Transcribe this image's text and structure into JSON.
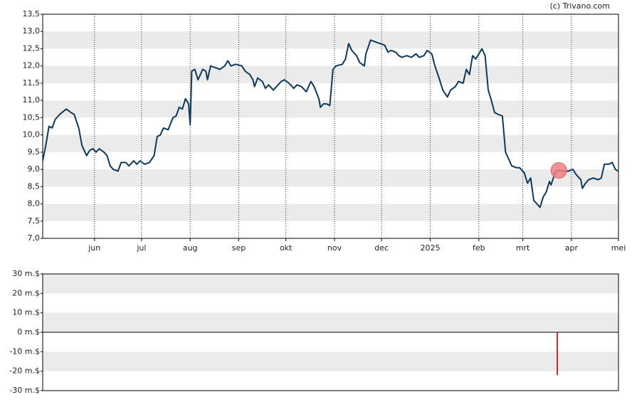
{
  "credit": "(c) Trivano.com",
  "chart_data": [
    {
      "type": "line",
      "x": [
        -2,
        0,
        2,
        4,
        6,
        9,
        13,
        16,
        18,
        21,
        23,
        26,
        28,
        30,
        32,
        34,
        37,
        39,
        41,
        43,
        46,
        48,
        51,
        53,
        56,
        58,
        60,
        63,
        66,
        69,
        71,
        73,
        75,
        78,
        81,
        83,
        85,
        87,
        89,
        91,
        92,
        93,
        95,
        97,
        100,
        102,
        103,
        105,
        108,
        111,
        114,
        116,
        118,
        121,
        125,
        127,
        130,
        132,
        133,
        135,
        138,
        140,
        142,
        145,
        147,
        150,
        152,
        155,
        158,
        160,
        163,
        166,
        169,
        171,
        174,
        175,
        177,
        179,
        181,
        183,
        185,
        189,
        191,
        193,
        195,
        198,
        200,
        203,
        204,
        207,
        210,
        213,
        216,
        218,
        220,
        223,
        225,
        227,
        230,
        233,
        236,
        238,
        241,
        243,
        246,
        248,
        251,
        253,
        256,
        258,
        261,
        263,
        266,
        268,
        270,
        272,
        274,
        276,
        278,
        280,
        282,
        284,
        286,
        288,
        291,
        293,
        295,
        297,
        300,
        302,
        305,
        307,
        309,
        311,
        313,
        315,
        317,
        319,
        321,
        322,
        325,
        327,
        330,
        333,
        336,
        338,
        341,
        342,
        344,
        346,
        349,
        352,
        354,
        356,
        359,
        361,
        363,
        365
      ],
      "values": [
        9.25,
        9.7,
        10.25,
        10.2,
        10.45,
        10.6,
        10.75,
        10.65,
        10.6,
        10.2,
        9.7,
        9.4,
        9.55,
        9.6,
        9.5,
        9.6,
        9.5,
        9.4,
        9.1,
        9.0,
        8.95,
        9.2,
        9.2,
        9.1,
        9.25,
        9.15,
        9.25,
        9.15,
        9.2,
        9.4,
        9.95,
        10.0,
        10.2,
        10.15,
        10.5,
        10.55,
        10.8,
        10.75,
        11.05,
        10.9,
        10.3,
        11.85,
        11.9,
        11.6,
        11.9,
        11.85,
        11.6,
        12.0,
        11.95,
        11.9,
        12.0,
        12.15,
        12.0,
        12.05,
        12.0,
        11.85,
        11.75,
        11.6,
        11.4,
        11.65,
        11.55,
        11.35,
        11.45,
        11.3,
        11.4,
        11.55,
        11.6,
        11.5,
        11.35,
        11.45,
        11.4,
        11.25,
        11.55,
        11.4,
        11.05,
        10.8,
        10.9,
        10.9,
        10.85,
        11.9,
        12.0,
        12.05,
        12.2,
        12.65,
        12.45,
        12.3,
        12.1,
        12.0,
        12.35,
        12.75,
        12.7,
        12.65,
        12.6,
        12.4,
        12.45,
        12.4,
        12.3,
        12.25,
        12.3,
        12.25,
        12.35,
        12.25,
        12.3,
        12.45,
        12.35,
        12.0,
        11.6,
        11.3,
        11.1,
        11.3,
        11.4,
        11.55,
        11.5,
        11.9,
        11.75,
        12.3,
        12.2,
        12.35,
        12.5,
        12.3,
        11.3,
        11.0,
        10.65,
        10.6,
        10.55,
        9.5,
        9.3,
        9.1,
        9.05,
        9.05,
        8.9,
        8.6,
        8.75,
        8.1,
        8.0,
        7.9,
        8.2,
        8.35,
        8.65,
        8.55,
        8.95,
        8.97,
        8.95,
        8.95,
        9.0,
        8.85,
        8.7,
        8.45,
        8.6,
        8.7,
        8.75,
        8.7,
        8.75,
        9.15,
        9.15,
        9.2,
        9.0,
        8.95
      ],
      "color": "#0d3a5c",
      "marker": {
        "x": 327,
        "value": 8.97,
        "color": "#f08080"
      },
      "xlim": [
        -2,
        365
      ],
      "xticks": [
        {
          "value": 31,
          "label": "jun"
        },
        {
          "value": 61,
          "label": "jul"
        },
        {
          "value": 92,
          "label": "aug"
        },
        {
          "value": 123,
          "label": "sep"
        },
        {
          "value": 153,
          "label": "okt"
        },
        {
          "value": 184,
          "label": "nov"
        },
        {
          "value": 214,
          "label": "dec"
        },
        {
          "value": 245,
          "label": "2025"
        },
        {
          "value": 276,
          "label": "feb"
        },
        {
          "value": 304,
          "label": "mrt"
        },
        {
          "value": 335,
          "label": "apr"
        },
        {
          "value": 365,
          "label": "mei"
        }
      ],
      "ylim": [
        7,
        13.5
      ],
      "yticks": [
        {
          "value": 7,
          "label": "7,0"
        },
        {
          "value": 7.5,
          "label": "7,5"
        },
        {
          "value": 8,
          "label": "8,0"
        },
        {
          "value": 8.5,
          "label": "8,5"
        },
        {
          "value": 9,
          "label": "9,0"
        },
        {
          "value": 9.5,
          "label": "9,5"
        },
        {
          "value": 10,
          "label": "10,0"
        },
        {
          "value": 10.5,
          "label": "10,5"
        },
        {
          "value": 11,
          "label": "11,0"
        },
        {
          "value": 11.5,
          "label": "11,5"
        },
        {
          "value": 12,
          "label": "12,0"
        },
        {
          "value": 12.5,
          "label": "12,5"
        },
        {
          "value": 13,
          "label": "13,0"
        },
        {
          "value": 13.5,
          "label": "13,5"
        }
      ],
      "grid": true
    },
    {
      "type": "bar",
      "x": [
        326
      ],
      "values": [
        -22
      ],
      "color": "#dd2222",
      "xlim": [
        -2,
        365
      ],
      "ylim": [
        -30,
        30
      ],
      "yticks": [
        {
          "value": -30,
          "label": "-30 m.$"
        },
        {
          "value": -20,
          "label": "-20 m.$"
        },
        {
          "value": -10,
          "label": "-10 m.$"
        },
        {
          "value": 0,
          "label": "0 m.$"
        },
        {
          "value": 10,
          "label": "10 m.$"
        },
        {
          "value": 20,
          "label": "20 m.$"
        },
        {
          "value": 30,
          "label": "30 m.$"
        }
      ],
      "grid": true
    }
  ]
}
